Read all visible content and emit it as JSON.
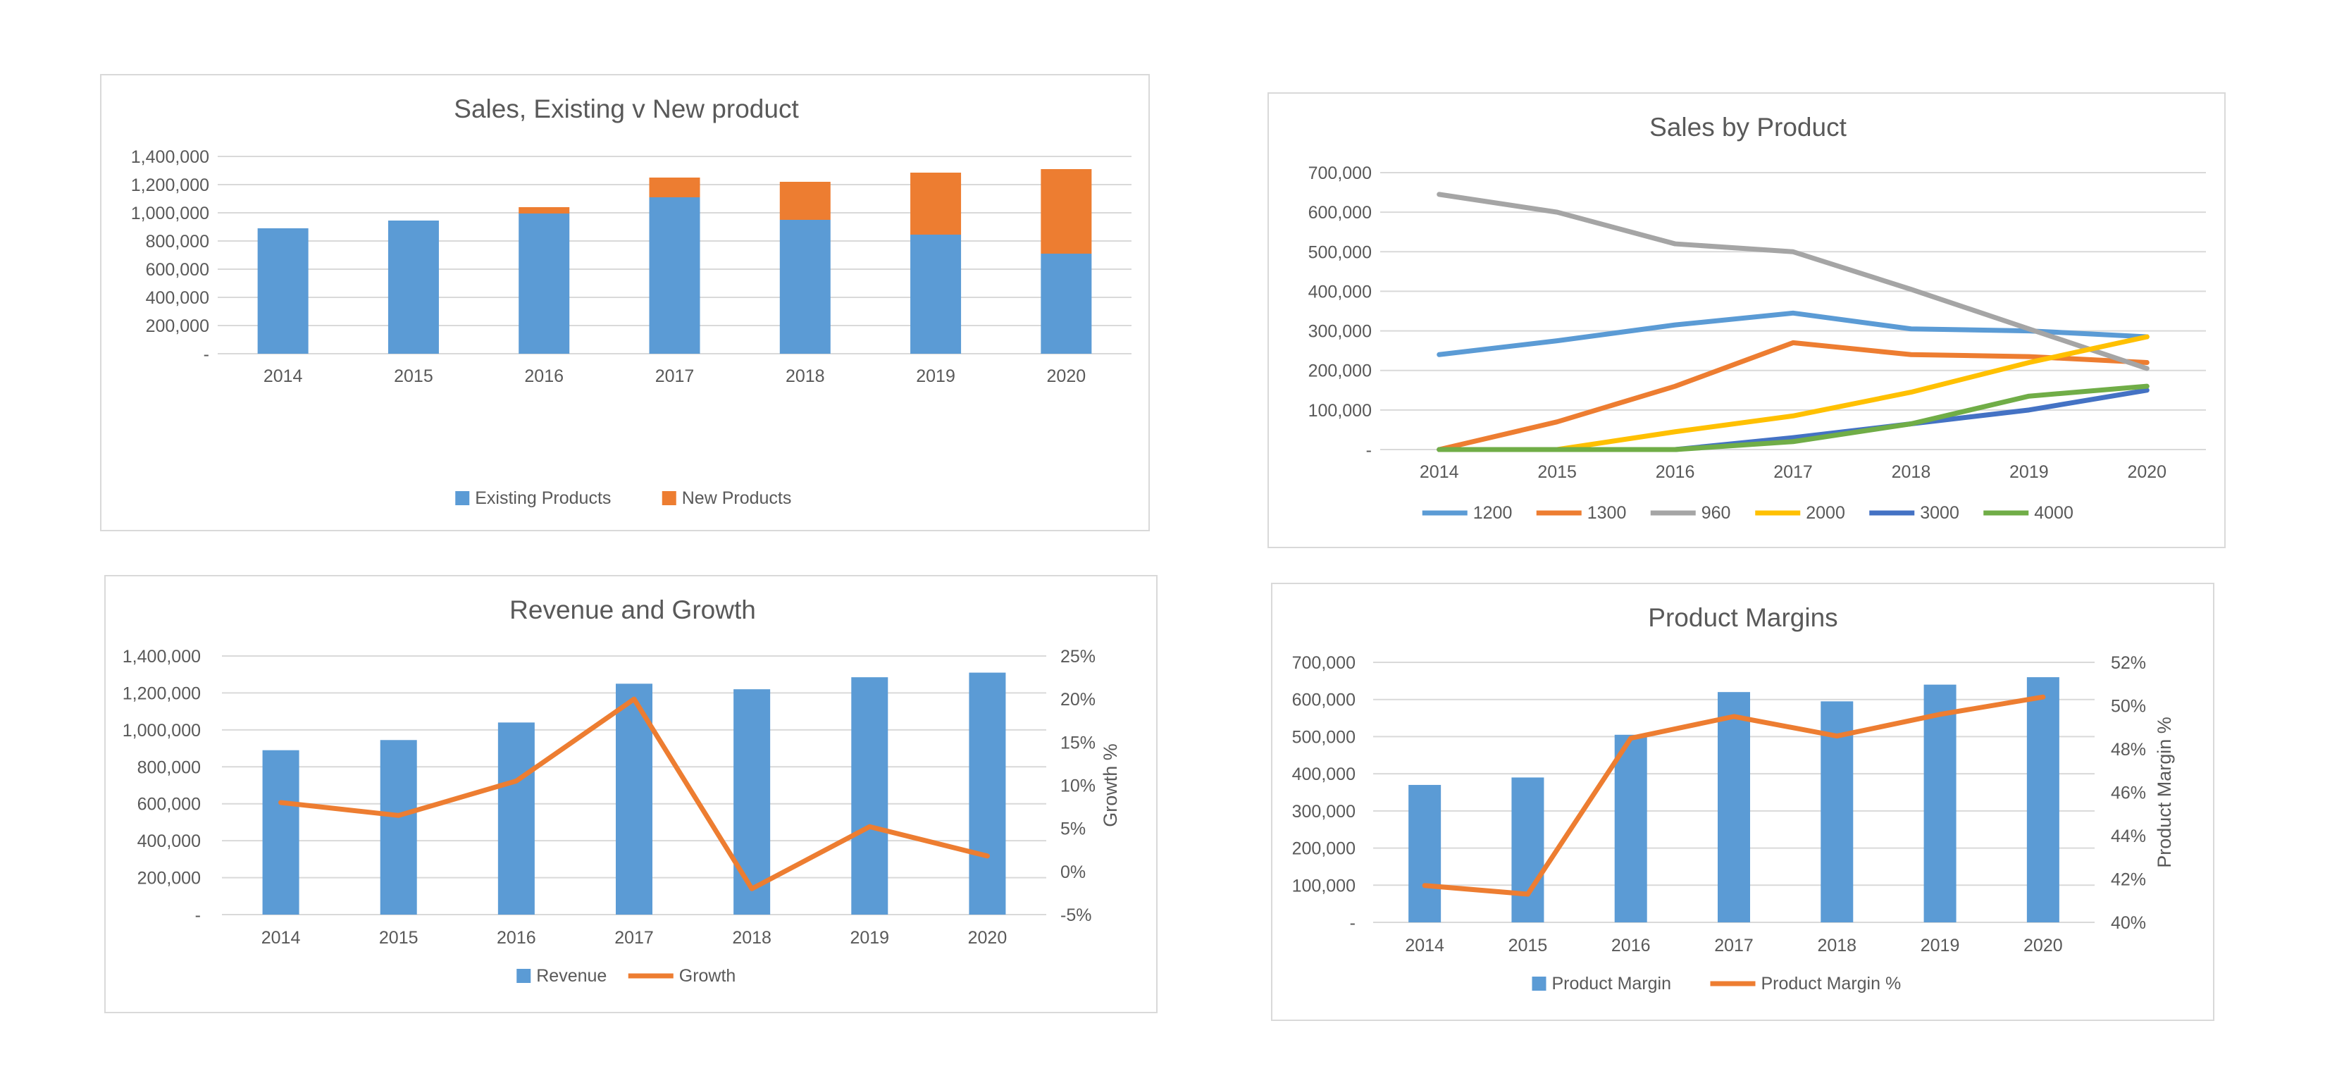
{
  "colors": {
    "blue": "#5b9bd5",
    "orange": "#ed7d31",
    "gray": "#a5a5a5",
    "yellow": "#ffc000",
    "darkblue": "#4472c4",
    "green": "#70ad47",
    "grid": "#d9d9d9",
    "text": "#595959"
  },
  "chart_data": [
    {
      "type": "bar",
      "stacked": true,
      "title": "Sales, Existing v New product",
      "categories": [
        "2014",
        "2015",
        "2016",
        "2017",
        "2018",
        "2019",
        "2020"
      ],
      "yticks": [
        "-",
        "200,000",
        "400,000",
        "600,000",
        "800,000",
        "1,000,000",
        "1,200,000",
        "1,400,000"
      ],
      "ylim": [
        0,
        1400000
      ],
      "grid": true,
      "legend_position": "bottom",
      "series": [
        {
          "name": "Existing Products",
          "color": "#5b9bd5",
          "values": [
            890000,
            945000,
            995000,
            1110000,
            950000,
            845000,
            710000
          ]
        },
        {
          "name": "New Products",
          "color": "#ed7d31",
          "values": [
            0,
            0,
            45000,
            140000,
            270000,
            440000,
            600000
          ]
        }
      ]
    },
    {
      "type": "line",
      "title": "Sales by Product",
      "categories": [
        "2014",
        "2015",
        "2016",
        "2017",
        "2018",
        "2019",
        "2020"
      ],
      "yticks": [
        "-",
        "100,000",
        "200,000",
        "300,000",
        "400,000",
        "500,000",
        "600,000",
        "700,000"
      ],
      "ylim": [
        0,
        700000
      ],
      "grid": true,
      "legend_position": "bottom",
      "series": [
        {
          "name": "1200",
          "color": "#5b9bd5",
          "values": [
            240000,
            275000,
            315000,
            345000,
            305000,
            300000,
            285000
          ]
        },
        {
          "name": "1300",
          "color": "#ed7d31",
          "values": [
            0,
            70000,
            160000,
            270000,
            240000,
            235000,
            220000
          ]
        },
        {
          "name": "960",
          "color": "#a5a5a5",
          "values": [
            645000,
            600000,
            520000,
            500000,
            405000,
            305000,
            205000
          ]
        },
        {
          "name": "2000",
          "color": "#ffc000",
          "values": [
            0,
            0,
            45000,
            85000,
            145000,
            220000,
            285000
          ]
        },
        {
          "name": "3000",
          "color": "#4472c4",
          "values": [
            0,
            0,
            0,
            30000,
            65000,
            100000,
            150000
          ]
        },
        {
          "name": "4000",
          "color": "#70ad47",
          "values": [
            0,
            0,
            0,
            20000,
            65000,
            135000,
            160000
          ]
        }
      ]
    },
    {
      "type": "bar",
      "combo": true,
      "title": "Revenue and Growth",
      "categories": [
        "2014",
        "2015",
        "2016",
        "2017",
        "2018",
        "2019",
        "2020"
      ],
      "yticks": [
        "-",
        "200,000",
        "400,000",
        "600,000",
        "800,000",
        "1,000,000",
        "1,200,000",
        "1,400,000"
      ],
      "ylim": [
        0,
        1400000
      ],
      "y2ticks": [
        "-5%",
        "0%",
        "5%",
        "10%",
        "15%",
        "20%",
        "25%"
      ],
      "y2lim": [
        -5,
        25
      ],
      "y2label": "Growth %",
      "grid": true,
      "legend_position": "bottom",
      "series": [
        {
          "name": "Revenue",
          "kind": "bar",
          "axis": "left",
          "color": "#5b9bd5",
          "values": [
            890000,
            945000,
            1040000,
            1250000,
            1220000,
            1285000,
            1310000
          ]
        },
        {
          "name": "Growth",
          "kind": "line",
          "axis": "right",
          "color": "#ed7d31",
          "values": [
            8,
            6.5,
            10.5,
            20,
            -2,
            5.2,
            1.8
          ]
        }
      ]
    },
    {
      "type": "bar",
      "combo": true,
      "title": "Product Margins",
      "categories": [
        "2014",
        "2015",
        "2016",
        "2017",
        "2018",
        "2019",
        "2020"
      ],
      "yticks": [
        "-",
        "100,000",
        "200,000",
        "300,000",
        "400,000",
        "500,000",
        "600,000",
        "700,000"
      ],
      "ylim": [
        0,
        700000
      ],
      "y2ticks": [
        "40%",
        "42%",
        "44%",
        "46%",
        "48%",
        "50%",
        "52%"
      ],
      "y2lim": [
        40,
        52
      ],
      "y2label": "Product Margin %",
      "grid": true,
      "legend_position": "bottom",
      "series": [
        {
          "name": "Product Margin",
          "kind": "bar",
          "axis": "left",
          "color": "#5b9bd5",
          "values": [
            370000,
            390000,
            505000,
            620000,
            595000,
            640000,
            660000
          ]
        },
        {
          "name": "Product Margin %",
          "kind": "line",
          "axis": "right",
          "color": "#ed7d31",
          "values": [
            41.7,
            41.3,
            48.5,
            49.5,
            48.6,
            49.6,
            50.4
          ]
        }
      ]
    }
  ]
}
